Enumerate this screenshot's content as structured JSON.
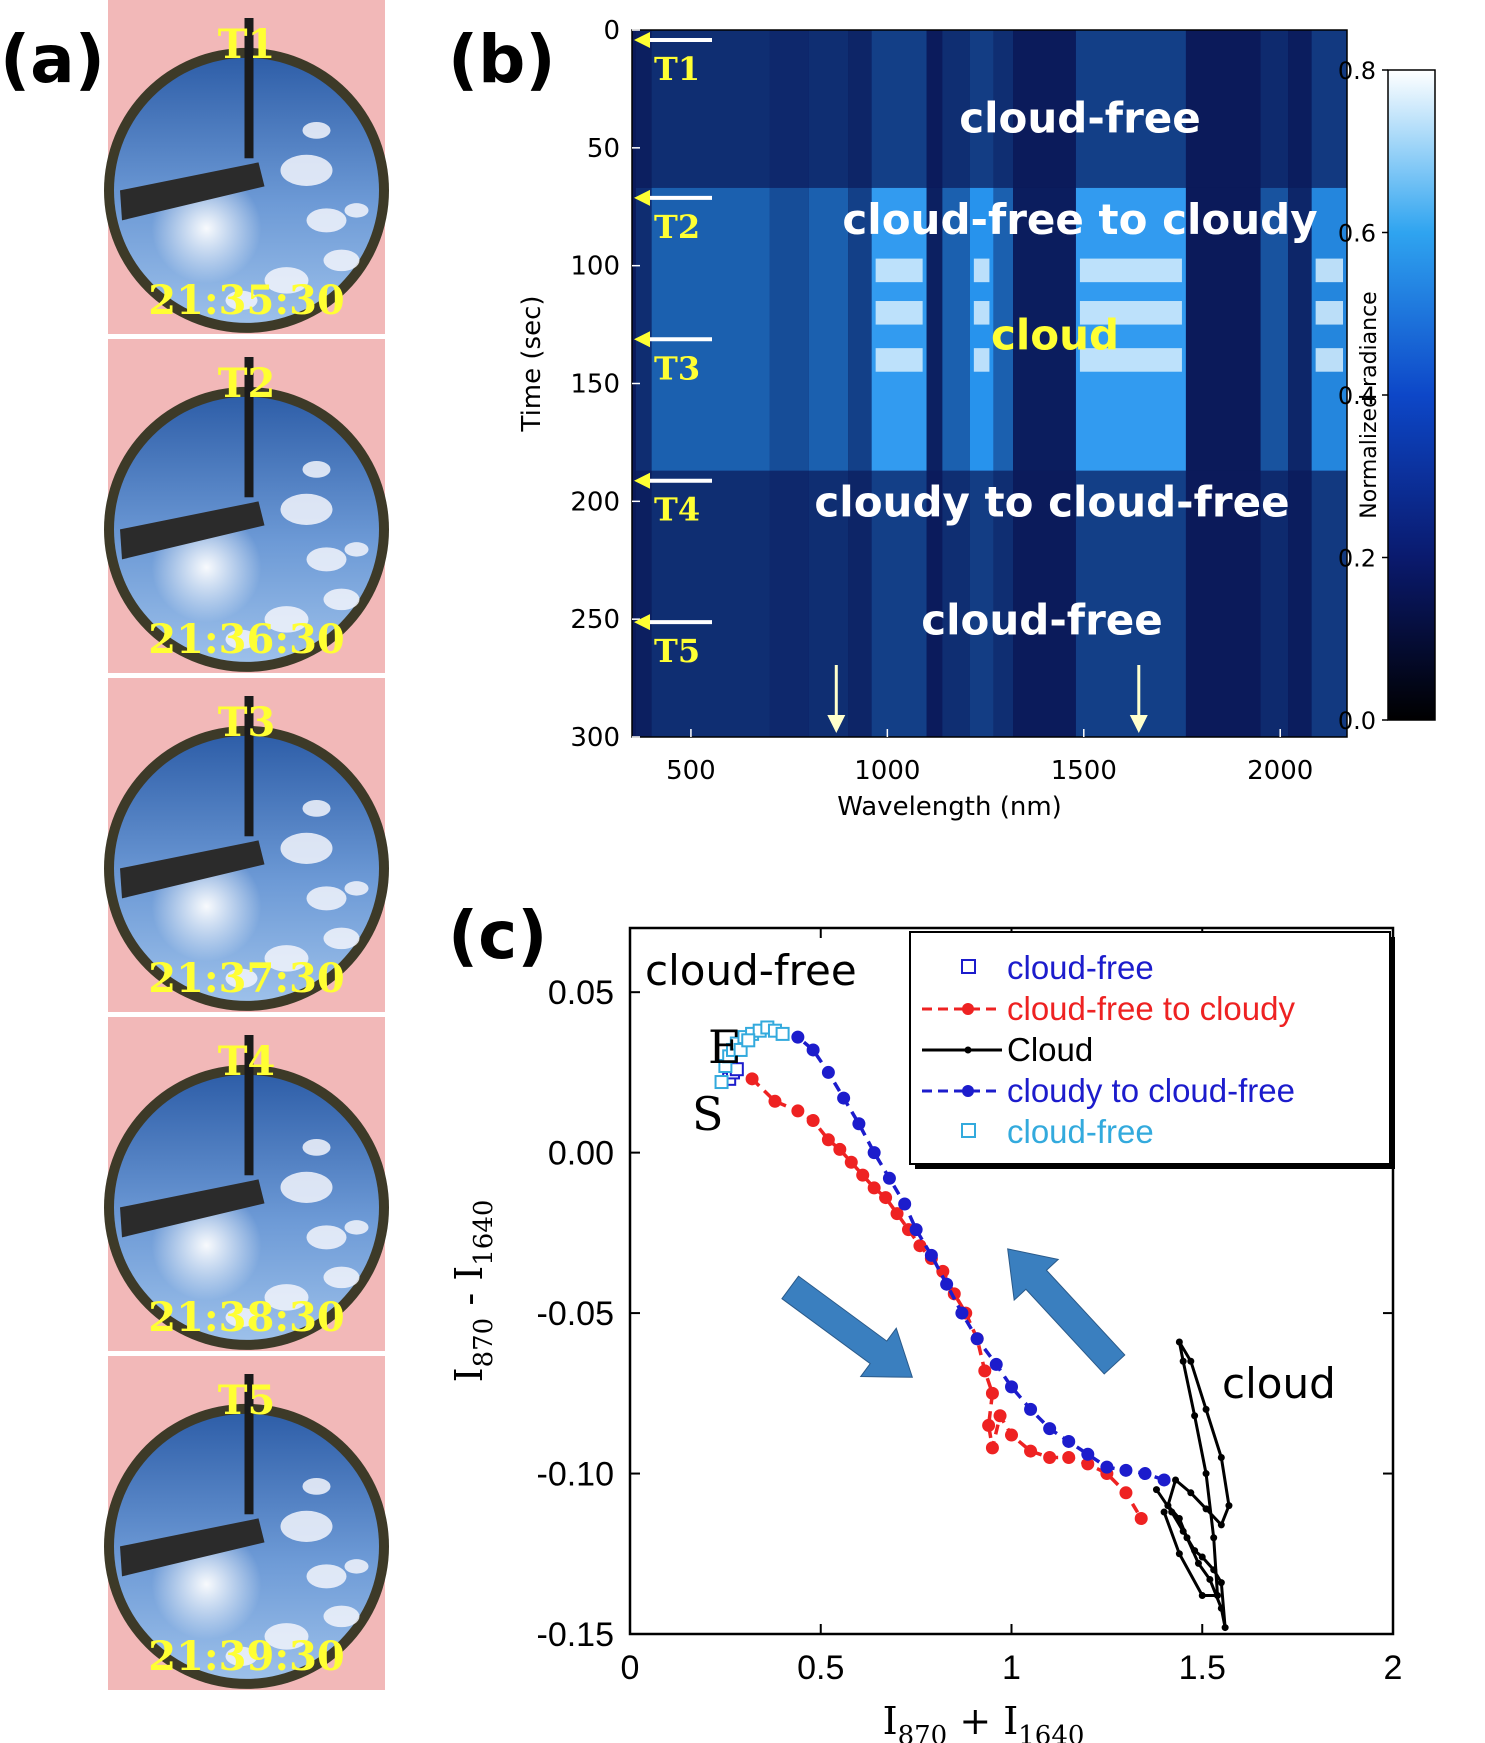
{
  "panels": {
    "a": {
      "letter": "(a)"
    },
    "b": {
      "letter": "(b)"
    },
    "c": {
      "letter": "(c)"
    }
  },
  "photos": [
    {
      "tag": "T1",
      "time": "21:35:30"
    },
    {
      "tag": "T2",
      "time": "21:36:30"
    },
    {
      "tag": "T3",
      "time": "21:37:30"
    },
    {
      "tag": "T4",
      "time": "21:38:30"
    },
    {
      "tag": "T5",
      "time": "21:39:30"
    }
  ],
  "colors": {
    "sky": "#5b86c8",
    "photo_border": "#f2b8b8",
    "yellow": "#ffff33",
    "blue_series": "#1c1ccc",
    "red_series": "#ee2222",
    "cyan_series": "#33aadd",
    "black_series": "#000000",
    "arrow_fill": "#3a7fbf"
  },
  "chart_data": [
    {
      "type": "heatmap",
      "panel": "b",
      "xlabel": "Wavelength (nm)",
      "ylabel": "Time (sec)",
      "xlim": [
        350,
        2170
      ],
      "ylim": [
        0,
        300
      ],
      "x_ticks": [
        500,
        1000,
        1500,
        2000
      ],
      "y_ticks": [
        0,
        50,
        100,
        150,
        200,
        250,
        300
      ],
      "colorbar": {
        "label": "Normalized radiance",
        "range": [
          0.0,
          0.8
        ],
        "ticks": [
          "0.0",
          "0.2",
          "0.4",
          "0.6",
          "0.8"
        ]
      },
      "time_markers": [
        {
          "label": "T1",
          "time": 0
        },
        {
          "label": "T2",
          "time": 67
        },
        {
          "label": "T3",
          "time": 127
        },
        {
          "label": "T4",
          "time": 187
        },
        {
          "label": "T5",
          "time": 247
        }
      ],
      "wavelength_arrows": [
        870,
        1640
      ],
      "annotations": [
        {
          "text": "cloud-free",
          "color": "#ffffff",
          "x": 1850,
          "time": 35
        },
        {
          "text": "cloud-free to cloudy",
          "color": "#ffffff",
          "x": 1850,
          "time": 78
        },
        {
          "text": "cloud",
          "color": "#ffff33",
          "x": 1360,
          "time": 127
        },
        {
          "text": "cloudy to cloud-free",
          "color": "#ffffff",
          "x": 1850,
          "time": 198
        },
        {
          "text": "cloud-free",
          "color": "#ffffff",
          "x": 1750,
          "time": 248
        }
      ]
    },
    {
      "type": "scatter",
      "panel": "c",
      "xlabel": "I870 + I1640",
      "ylabel": "I870 - I1640",
      "xlim": [
        0,
        2
      ],
      "ylim": [
        -0.15,
        0.07
      ],
      "x_ticks": [
        "0",
        "0.5",
        "1",
        "1.5",
        "2"
      ],
      "y_ticks": [
        "-0.15",
        "-0.10",
        "-0.05",
        "0.00",
        "0.05"
      ],
      "legend_position": "top-right",
      "series": [
        {
          "name": "cloud-free",
          "style": "open-square",
          "color": "#1c1ccc",
          "points": [
            [
              0.26,
              0.023
            ],
            [
              0.27,
              0.025
            ],
            [
              0.28,
              0.026
            ]
          ]
        },
        {
          "name": "cloud-free to cloudy",
          "style": "dashed-dot",
          "color": "#ee2222",
          "points": [
            [
              0.32,
              0.023
            ],
            [
              0.38,
              0.016
            ],
            [
              0.44,
              0.013
            ],
            [
              0.48,
              0.01
            ],
            [
              0.52,
              0.004
            ],
            [
              0.55,
              0.001
            ],
            [
              0.58,
              -0.003
            ],
            [
              0.61,
              -0.007
            ],
            [
              0.64,
              -0.011
            ],
            [
              0.67,
              -0.014
            ],
            [
              0.7,
              -0.019
            ],
            [
              0.73,
              -0.024
            ],
            [
              0.76,
              -0.029
            ],
            [
              0.79,
              -0.033
            ],
            [
              0.82,
              -0.037
            ],
            [
              0.85,
              -0.044
            ],
            [
              0.88,
              -0.05
            ],
            [
              0.91,
              -0.058
            ],
            [
              0.93,
              -0.068
            ],
            [
              0.95,
              -0.075
            ],
            [
              0.94,
              -0.085
            ],
            [
              0.95,
              -0.092
            ],
            [
              0.97,
              -0.082
            ],
            [
              1.0,
              -0.088
            ],
            [
              1.05,
              -0.093
            ],
            [
              1.1,
              -0.095
            ],
            [
              1.15,
              -0.095
            ],
            [
              1.2,
              -0.097
            ],
            [
              1.25,
              -0.1
            ],
            [
              1.3,
              -0.106
            ],
            [
              1.34,
              -0.114
            ]
          ]
        },
        {
          "name": "Cloud",
          "style": "solid-dot",
          "color": "#000000",
          "points": [
            [
              1.38,
              -0.105
            ],
            [
              1.42,
              -0.112
            ],
            [
              1.45,
              -0.118
            ],
            [
              1.48,
              -0.124
            ],
            [
              1.5,
              -0.126
            ],
            [
              1.53,
              -0.13
            ],
            [
              1.55,
              -0.134
            ],
            [
              1.56,
              -0.148
            ],
            [
              1.55,
              -0.142
            ],
            [
              1.52,
              -0.133
            ],
            [
              1.49,
              -0.128
            ],
            [
              1.46,
              -0.12
            ],
            [
              1.44,
              -0.114
            ],
            [
              1.41,
              -0.11
            ],
            [
              1.43,
              -0.102
            ],
            [
              1.47,
              -0.106
            ],
            [
              1.51,
              -0.111
            ],
            [
              1.55,
              -0.116
            ],
            [
              1.57,
              -0.11
            ],
            [
              1.55,
              -0.095
            ],
            [
              1.51,
              -0.08
            ],
            [
              1.47,
              -0.065
            ],
            [
              1.44,
              -0.059
            ],
            [
              1.45,
              -0.065
            ],
            [
              1.48,
              -0.082
            ],
            [
              1.51,
              -0.1
            ],
            [
              1.53,
              -0.12
            ],
            [
              1.54,
              -0.138
            ],
            [
              1.5,
              -0.138
            ],
            [
              1.44,
              -0.125
            ],
            [
              1.4,
              -0.112
            ]
          ]
        },
        {
          "name": "cloudy to cloud-free",
          "style": "dashed-dot",
          "color": "#1c1ccc",
          "points": [
            [
              1.4,
              -0.102
            ],
            [
              1.35,
              -0.1
            ],
            [
              1.3,
              -0.099
            ],
            [
              1.25,
              -0.098
            ],
            [
              1.2,
              -0.094
            ],
            [
              1.15,
              -0.09
            ],
            [
              1.1,
              -0.086
            ],
            [
              1.05,
              -0.08
            ],
            [
              1.0,
              -0.073
            ],
            [
              0.96,
              -0.066
            ],
            [
              0.91,
              -0.058
            ],
            [
              0.87,
              -0.05
            ],
            [
              0.83,
              -0.041
            ],
            [
              0.79,
              -0.032
            ],
            [
              0.75,
              -0.024
            ],
            [
              0.72,
              -0.016
            ],
            [
              0.68,
              -0.008
            ],
            [
              0.64,
              0.0
            ],
            [
              0.6,
              0.009
            ],
            [
              0.56,
              0.017
            ],
            [
              0.52,
              0.025
            ],
            [
              0.48,
              0.032
            ],
            [
              0.44,
              0.036
            ]
          ]
        },
        {
          "name": "cloud-free",
          "style": "open-square",
          "color": "#33aadd",
          "points": [
            [
              0.24,
              0.022
            ],
            [
              0.25,
              0.027
            ],
            [
              0.26,
              0.03
            ],
            [
              0.27,
              0.032
            ],
            [
              0.28,
              0.034
            ],
            [
              0.3,
              0.036
            ],
            [
              0.32,
              0.037
            ],
            [
              0.34,
              0.038
            ],
            [
              0.36,
              0.039
            ],
            [
              0.38,
              0.038
            ],
            [
              0.4,
              0.037
            ],
            [
              0.29,
              0.032
            ],
            [
              0.31,
              0.035
            ]
          ]
        }
      ],
      "annotations": [
        {
          "text": "cloud-free",
          "kind": "label"
        },
        {
          "text": "cloud",
          "kind": "label"
        },
        {
          "text": "E",
          "kind": "end-marker"
        },
        {
          "text": "S",
          "kind": "start-marker"
        }
      ]
    }
  ]
}
